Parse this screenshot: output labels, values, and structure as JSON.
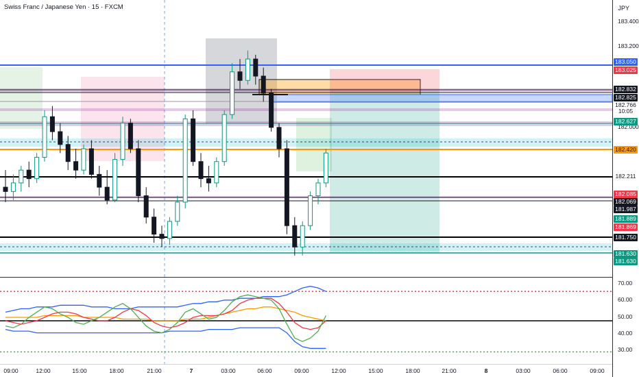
{
  "header": {
    "title": "Swiss Franc / Japanese Yen · 15 · FXCM",
    "currency": "JPY"
  },
  "price_axis": {
    "ticks": [
      "183.400",
      "183.200",
      "182.000",
      "181.750"
    ],
    "labels": [
      {
        "text": "183.050",
        "bg": "#2962ff",
        "fg": "#ffffff"
      },
      {
        "text": "183.025",
        "bg": "#f23645",
        "fg": "#ffffff"
      },
      {
        "text": "182.832",
        "bg": "#131722",
        "fg": "#ffffff"
      },
      {
        "text": "182.825",
        "bg": "#131722",
        "fg": "#ffffff"
      },
      {
        "text": "182.766",
        "bg": "#ffffff",
        "fg": "#131722"
      },
      {
        "text": "10:05",
        "bg": "#ffffff",
        "fg": "#131722"
      },
      {
        "text": "182.627",
        "bg": "#089981",
        "fg": "#ffffff"
      },
      {
        "text": "182.420",
        "bg": "#ff9800",
        "fg": "#131722"
      },
      {
        "text": "182.211",
        "bg": "#ffffff",
        "fg": "#131722"
      },
      {
        "text": "182.085",
        "bg": "#f23645",
        "fg": "#ffffff"
      },
      {
        "text": "182.069",
        "bg": "#131722",
        "fg": "#ffffff"
      },
      {
        "text": "181.987",
        "bg": "#131722",
        "fg": "#ffffff"
      },
      {
        "text": "181.889",
        "bg": "#089981",
        "fg": "#ffffff"
      },
      {
        "text": "181.869",
        "bg": "#f23645",
        "fg": "#ffffff"
      },
      {
        "text": "181.750",
        "bg": "#131722",
        "fg": "#ffffff"
      },
      {
        "text": "181.630",
        "bg": "#089981",
        "fg": "#ffffff"
      },
      {
        "text": "181.630",
        "bg": "#089981",
        "fg": "#ffffff"
      }
    ]
  },
  "indicator_axis": {
    "ticks": [
      "70.00",
      "60.00",
      "50.00",
      "40.00",
      "30.00"
    ]
  },
  "time_axis": {
    "ticks": [
      "09:00",
      "12:00",
      "15:00",
      "18:00",
      "21:00",
      "7",
      "03:00",
      "06:00",
      "09:00",
      "12:00",
      "15:00",
      "18:00",
      "21:00",
      "8",
      "03:00",
      "06:00",
      "09:00"
    ]
  },
  "chart_data": {
    "type": "candlestick",
    "title": "Swiss Franc / Japanese Yen · 15 · FXCM",
    "symbol": "CHFJPY",
    "interval": "15",
    "currency": "JPY",
    "ylim": [
      181.55,
      183.5
    ],
    "last_price": 182.766,
    "bar_countdown": "10:05",
    "horizontal_levels": [
      {
        "price": 183.05,
        "color": "#2962ff"
      },
      {
        "price": 182.832,
        "color": "#131722"
      },
      {
        "price": 182.825,
        "color": "#131722"
      },
      {
        "price": 182.627,
        "color": "#089981"
      },
      {
        "price": 182.42,
        "color": "#ff9800"
      },
      {
        "price": 182.211,
        "color": "#131722"
      },
      {
        "price": 182.085,
        "color": "#f23645"
      },
      {
        "price": 182.069,
        "color": "#131722"
      },
      {
        "price": 181.987,
        "color": "#131722"
      },
      {
        "price": 181.75,
        "color": "#131722"
      },
      {
        "price": 181.63,
        "color": "#089981"
      }
    ],
    "position": {
      "side": "short",
      "entry": 182.825,
      "stop": 183.025,
      "target": 181.63
    },
    "candles_ohlc": [
      [
        182.62,
        182.7,
        182.55,
        182.6
      ],
      [
        182.6,
        182.68,
        182.56,
        182.64
      ],
      [
        182.64,
        182.72,
        182.6,
        182.7
      ],
      [
        182.7,
        182.74,
        182.62,
        182.66
      ],
      [
        182.66,
        182.78,
        182.64,
        182.76
      ],
      [
        182.76,
        182.98,
        182.74,
        182.95
      ],
      [
        182.95,
        183.0,
        182.84,
        182.88
      ],
      [
        182.88,
        182.92,
        182.78,
        182.82
      ],
      [
        182.82,
        182.86,
        182.7,
        182.74
      ],
      [
        182.74,
        182.8,
        182.66,
        182.7
      ],
      [
        182.7,
        182.82,
        182.68,
        182.8
      ],
      [
        182.8,
        182.84,
        182.66,
        182.68
      ],
      [
        182.68,
        182.72,
        182.58,
        182.62
      ],
      [
        182.62,
        182.7,
        182.54,
        182.56
      ],
      [
        182.56,
        182.78,
        182.55,
        182.75
      ],
      [
        182.75,
        182.95,
        182.72,
        182.92
      ],
      [
        182.92,
        182.94,
        182.78,
        182.8
      ],
      [
        182.8,
        182.84,
        182.55,
        182.58
      ],
      [
        182.58,
        182.62,
        182.45,
        182.48
      ],
      [
        182.48,
        182.52,
        182.36,
        182.4
      ],
      [
        182.4,
        182.44,
        182.34,
        182.38
      ],
      [
        182.38,
        182.48,
        182.35,
        182.46
      ],
      [
        182.46,
        182.58,
        182.44,
        182.55
      ],
      [
        182.55,
        182.96,
        182.52,
        182.94
      ],
      [
        182.94,
        182.98,
        182.72,
        182.74
      ],
      [
        182.74,
        182.78,
        182.62,
        182.66
      ],
      [
        182.66,
        182.72,
        182.6,
        182.64
      ],
      [
        182.64,
        182.76,
        182.62,
        182.74
      ],
      [
        182.74,
        182.98,
        182.72,
        182.96
      ],
      [
        182.96,
        183.2,
        182.94,
        183.16
      ],
      [
        183.16,
        183.22,
        183.08,
        183.12
      ],
      [
        183.12,
        183.26,
        183.1,
        183.22
      ],
      [
        183.22,
        183.24,
        183.1,
        183.14
      ],
      [
        183.14,
        183.18,
        183.02,
        183.06
      ],
      [
        183.06,
        183.08,
        182.88,
        182.9
      ],
      [
        182.9,
        182.92,
        182.76,
        182.8
      ],
      [
        182.8,
        182.84,
        182.4,
        182.44
      ],
      [
        182.44,
        182.48,
        182.3,
        182.34
      ],
      [
        182.34,
        182.46,
        182.3,
        182.44
      ],
      [
        182.44,
        182.6,
        182.42,
        182.58
      ],
      [
        182.58,
        182.66,
        182.54,
        182.64
      ],
      [
        182.64,
        182.8,
        182.62,
        182.78
      ]
    ],
    "oscillator": {
      "ylim": [
        25,
        75
      ],
      "ticks": [
        70,
        60,
        50,
        40,
        30
      ],
      "levels": [
        {
          "value": 67,
          "color": "#f23645",
          "style": "dotted"
        },
        {
          "value": 50,
          "color": "#000000",
          "style": "solid"
        },
        {
          "value": 32,
          "color": "#4caf50",
          "style": "dotted"
        }
      ],
      "series": [
        {
          "color": "#2962ff",
          "values": [
            55,
            56,
            57,
            57,
            58,
            58,
            58,
            59,
            59,
            59,
            59,
            58,
            58,
            58,
            57,
            57,
            57,
            58,
            58,
            58,
            58,
            58,
            58,
            59,
            60,
            60,
            61,
            61,
            62,
            62,
            63,
            63,
            63,
            64,
            64,
            64,
            65,
            67,
            69,
            70,
            69,
            67
          ]
        },
        {
          "color": "#2962ff",
          "values": [
            45,
            44,
            44,
            44,
            43,
            43,
            43,
            43,
            43,
            43,
            43,
            43,
            43,
            43,
            43,
            43,
            43,
            43,
            43,
            43,
            43,
            44,
            44,
            44,
            44,
            44,
            45,
            45,
            45,
            45,
            46,
            46,
            46,
            46,
            46,
            46,
            43,
            38,
            35,
            34,
            34,
            34
          ]
        },
        {
          "color": "#ff9800",
          "values": [
            52,
            52,
            52,
            52,
            52,
            53,
            53,
            53,
            53,
            53,
            52,
            52,
            52,
            52,
            52,
            51,
            51,
            51,
            51,
            50,
            50,
            50,
            50,
            51,
            51,
            51,
            52,
            53,
            54,
            55,
            56,
            57,
            57,
            58,
            58,
            57,
            56,
            55,
            53,
            52,
            51,
            50
          ]
        },
        {
          "color": "#f23645",
          "values": [
            50,
            49,
            48,
            49,
            50,
            52,
            54,
            55,
            55,
            54,
            52,
            51,
            50,
            50,
            52,
            55,
            57,
            56,
            53,
            49,
            47,
            46,
            47,
            49,
            52,
            53,
            53,
            53,
            54,
            56,
            60,
            62,
            63,
            63,
            63,
            60,
            55,
            49,
            46,
            45,
            46,
            50
          ]
        },
        {
          "color": "#4caf50",
          "values": [
            47,
            46,
            48,
            52,
            55,
            58,
            57,
            54,
            52,
            49,
            48,
            50,
            52,
            55,
            58,
            60,
            57,
            52,
            47,
            44,
            43,
            45,
            49,
            55,
            57,
            54,
            51,
            52,
            56,
            61,
            64,
            65,
            64,
            63,
            62,
            57,
            48,
            40,
            38,
            40,
            44,
            53
          ]
        }
      ]
    }
  }
}
